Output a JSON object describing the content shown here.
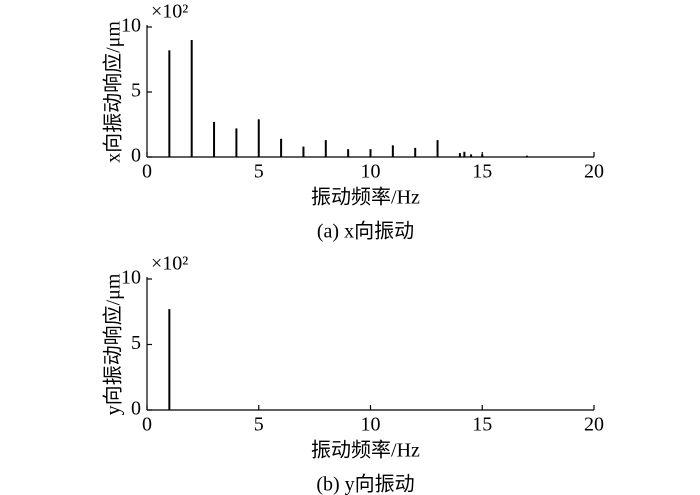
{
  "chart_data": [
    {
      "type": "stem",
      "title": "(a) x向振动",
      "xlabel": "振动频率/Hz",
      "ylabel": "x向振动响应/μm",
      "y_multiplier": "×10²",
      "x": [
        1,
        2,
        3,
        4,
        5,
        6,
        7,
        8,
        9,
        10,
        11,
        12,
        13,
        14,
        14.2,
        14.5,
        15,
        17
      ],
      "values": [
        8.2,
        9.0,
        2.7,
        2.2,
        2.9,
        1.4,
        0.8,
        1.3,
        0.6,
        0.6,
        0.9,
        0.7,
        1.3,
        0.3,
        0.4,
        0.2,
        0.2,
        0.1
      ],
      "color": "#000000",
      "xlim": [
        0,
        20
      ],
      "ylim": [
        0,
        10
      ],
      "xticks": [
        0,
        5,
        10,
        15,
        20
      ],
      "yticks": [
        0,
        5,
        10
      ]
    },
    {
      "type": "stem",
      "title": "(b) y向振动",
      "xlabel": "振动频率/Hz",
      "ylabel": "y向振动响应/μm",
      "y_multiplier": "×10²",
      "x": [
        1
      ],
      "values": [
        7.7
      ],
      "color": "#000000",
      "xlim": [
        0,
        20
      ],
      "ylim": [
        0,
        10
      ],
      "xticks": [
        0,
        5,
        10,
        15,
        20
      ],
      "yticks": [
        0,
        5,
        10
      ]
    }
  ]
}
